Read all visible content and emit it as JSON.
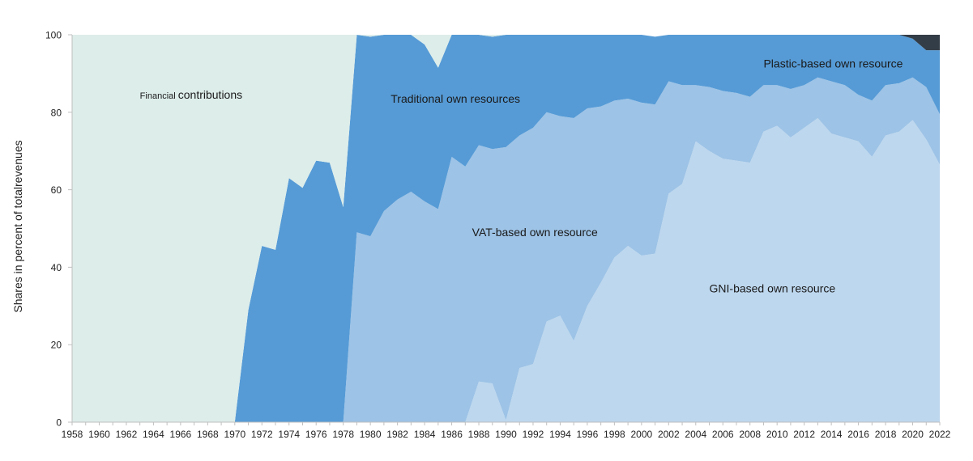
{
  "chart_data": {
    "type": "area",
    "stacked": true,
    "ylabel": "Shares in percent of totalrevenues",
    "xlabel": "",
    "ylim": [
      0,
      100
    ],
    "xlim": [
      1958,
      2022
    ],
    "yticks": [
      0,
      20,
      40,
      60,
      80,
      100
    ],
    "xticks": [
      1958,
      1960,
      1962,
      1964,
      1966,
      1968,
      1970,
      1972,
      1974,
      1976,
      1978,
      1980,
      1982,
      1984,
      1986,
      1988,
      1990,
      1992,
      1994,
      1996,
      1998,
      2000,
      2002,
      2004,
      2006,
      2008,
      2010,
      2012,
      2014,
      2016,
      2018,
      2020,
      2022
    ],
    "x": [
      1958,
      1959,
      1960,
      1961,
      1962,
      1963,
      1964,
      1965,
      1966,
      1967,
      1968,
      1969,
      1970,
      1971,
      1972,
      1973,
      1974,
      1975,
      1976,
      1977,
      1978,
      1979,
      1980,
      1981,
      1982,
      1983,
      1984,
      1985,
      1986,
      1987,
      1988,
      1989,
      1990,
      1991,
      1992,
      1993,
      1994,
      1995,
      1996,
      1997,
      1998,
      1999,
      2000,
      2001,
      2002,
      2003,
      2004,
      2005,
      2006,
      2007,
      2008,
      2009,
      2010,
      2011,
      2012,
      2013,
      2014,
      2015,
      2016,
      2017,
      2018,
      2019,
      2020,
      2021,
      2022
    ],
    "series": [
      {
        "key": "gni",
        "color": "#bdd7ee",
        "values": [
          0,
          0,
          0,
          0,
          0,
          0,
          0,
          0,
          0,
          0,
          0,
          0,
          0,
          0,
          0,
          0,
          0,
          0,
          0,
          0,
          0,
          0,
          0,
          0,
          0,
          0,
          0,
          0,
          0,
          0,
          10.5,
          10,
          0.5,
          14,
          15,
          26,
          27.5,
          21,
          30,
          36,
          42.5,
          45.5,
          43,
          43.5,
          59,
          61.5,
          72.5,
          70,
          68,
          67.5,
          67,
          75,
          76.5,
          73.5,
          76,
          78.5,
          74.5,
          73.5,
          72.5,
          68.5,
          74,
          75,
          78,
          73,
          66.5
        ]
      },
      {
        "key": "vat",
        "color": "#9dc3e6",
        "values": [
          0,
          0,
          0,
          0,
          0,
          0,
          0,
          0,
          0,
          0,
          0,
          0,
          0,
          0,
          0,
          0,
          0,
          0,
          0,
          0,
          0,
          49,
          48,
          54.5,
          57.5,
          59.5,
          57,
          55,
          68.5,
          66,
          61,
          60.5,
          70.5,
          60,
          61,
          54,
          51.5,
          57.5,
          51,
          45.5,
          40.5,
          38,
          39.5,
          38.5,
          29,
          25.5,
          14.5,
          16.5,
          17.5,
          17.5,
          17,
          12,
          10.5,
          12.5,
          11,
          10.5,
          13.5,
          13.5,
          12,
          14.5,
          13,
          12.5,
          11,
          13.5,
          13
        ]
      },
      {
        "key": "trad",
        "color": "#569bd6",
        "values": [
          0,
          0,
          0,
          0,
          0,
          0,
          0,
          0,
          0,
          0,
          0,
          0,
          0,
          29,
          45.5,
          44.5,
          63,
          60.5,
          67.5,
          67,
          55.5,
          51,
          51.5,
          45.5,
          42.5,
          40.5,
          40.5,
          36.5,
          31.5,
          34,
          28.5,
          29,
          29,
          26,
          24,
          20,
          21,
          21.5,
          19,
          18.5,
          17,
          16.5,
          17.5,
          17.5,
          12,
          13,
          13,
          13.5,
          14.5,
          15,
          16,
          13,
          13,
          14,
          13,
          11,
          12,
          13,
          15.5,
          17,
          13,
          12.5,
          10,
          9.5,
          16.5
        ]
      },
      {
        "key": "plastic",
        "color": "#333d47",
        "values": [
          0,
          0,
          0,
          0,
          0,
          0,
          0,
          0,
          0,
          0,
          0,
          0,
          0,
          0,
          0,
          0,
          0,
          0,
          0,
          0,
          0,
          0,
          0,
          0,
          0,
          0,
          0,
          0,
          0,
          0,
          0,
          0,
          0,
          0,
          0,
          0,
          0,
          0,
          0,
          0,
          0,
          0,
          0,
          0,
          0,
          0,
          0,
          0,
          0,
          0,
          0,
          0,
          0,
          0,
          0,
          0,
          0,
          0,
          0,
          0,
          0,
          0,
          1,
          4,
          4
        ]
      },
      {
        "key": "fin",
        "color": "#ddedea",
        "values": [
          100,
          100,
          100,
          100,
          100,
          100,
          100,
          100,
          100,
          100,
          100,
          100,
          100,
          71,
          54.5,
          55.5,
          37,
          39.5,
          32.5,
          33,
          44.5,
          0,
          0.5,
          0,
          0,
          0,
          2.5,
          8.5,
          0,
          0,
          0,
          0.5,
          0,
          0,
          0,
          0,
          0,
          0,
          0,
          0,
          0,
          0,
          0,
          0,
          0,
          0,
          0,
          0,
          0,
          0,
          0,
          0,
          0,
          0,
          0,
          0,
          0,
          0,
          0,
          0,
          0,
          0,
          0,
          0,
          0
        ]
      }
    ],
    "annotations": [
      {
        "key": "fin",
        "small": "Financial",
        "text": "contributions",
        "x": 1963,
        "y": 83.5
      },
      {
        "key": "trad",
        "text": "Traditional own resources",
        "x": 1981.5,
        "y": 82.5
      },
      {
        "key": "vat",
        "text": "VAT-based own resource",
        "x": 1987.5,
        "y": 48
      },
      {
        "key": "gni",
        "text": "GNI-based own resource",
        "x": 2005,
        "y": 33.5
      },
      {
        "key": "plastic",
        "text": "Plastic-based own resource",
        "x": 2009,
        "y": 91.5
      }
    ]
  }
}
